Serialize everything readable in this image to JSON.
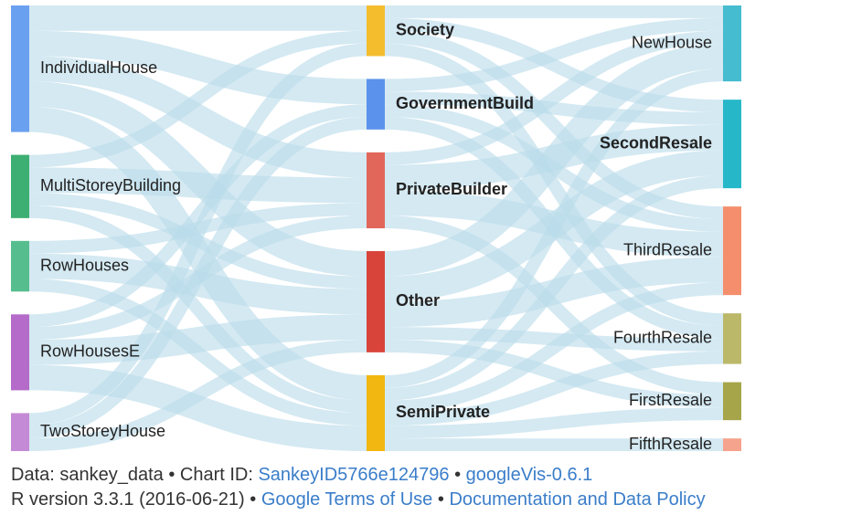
{
  "chart_data": {
    "type": "sankey",
    "link_color": "#b9dbea",
    "columns": [
      [
        {
          "name": "IndividualHouse",
          "color": "#6aa0f0",
          "bold": false
        },
        {
          "name": "MultiStoreyBuilding",
          "color": "#3eaf72",
          "bold": false
        },
        {
          "name": "RowHouses",
          "color": "#56be8e",
          "bold": false
        },
        {
          "name": "RowHousesE",
          "color": "#b46bc9",
          "bold": false
        },
        {
          "name": "TwoStoreyHouse",
          "color": "#c58ad6",
          "bold": false
        }
      ],
      [
        {
          "name": "Society",
          "color": "#f4bd2d",
          "bold": true
        },
        {
          "name": "GovernmentBuild",
          "color": "#5b93ec",
          "bold": true
        },
        {
          "name": "PrivateBuilder",
          "color": "#e2675b",
          "bold": true
        },
        {
          "name": "Other",
          "color": "#d9443a",
          "bold": true
        },
        {
          "name": "SemiPrivate",
          "color": "#f2b711",
          "bold": true
        }
      ],
      [
        {
          "name": "NewHouse",
          "color": "#45bcd0",
          "bold": false
        },
        {
          "name": "SecondResale",
          "color": "#26b8c9",
          "bold": true
        },
        {
          "name": "ThirdResale",
          "color": "#f48e6d",
          "bold": false
        },
        {
          "name": "FourthResale",
          "color": "#bbb86a",
          "bold": false
        },
        {
          "name": "FirstResale",
          "color": "#a6a54a",
          "bold": false
        },
        {
          "name": "FifthResale",
          "color": "#f5a38c",
          "bold": false
        }
      ]
    ],
    "links": [
      {
        "source": "IndividualHouse",
        "target": "Society",
        "value": 2
      },
      {
        "source": "IndividualHouse",
        "target": "GovernmentBuild",
        "value": 2
      },
      {
        "source": "IndividualHouse",
        "target": "PrivateBuilder",
        "value": 2
      },
      {
        "source": "IndividualHouse",
        "target": "Other",
        "value": 2
      },
      {
        "source": "IndividualHouse",
        "target": "SemiPrivate",
        "value": 2
      },
      {
        "source": "MultiStoreyBuilding",
        "target": "Society",
        "value": 1
      },
      {
        "source": "MultiStoreyBuilding",
        "target": "PrivateBuilder",
        "value": 2
      },
      {
        "source": "MultiStoreyBuilding",
        "target": "Other",
        "value": 1
      },
      {
        "source": "MultiStoreyBuilding",
        "target": "SemiPrivate",
        "value": 1
      },
      {
        "source": "RowHouses",
        "target": "PrivateBuilder",
        "value": 1
      },
      {
        "source": "RowHouses",
        "target": "Other",
        "value": 2
      },
      {
        "source": "RowHouses",
        "target": "SemiPrivate",
        "value": 1
      },
      {
        "source": "RowHousesE",
        "target": "GovernmentBuild",
        "value": 1
      },
      {
        "source": "RowHousesE",
        "target": "PrivateBuilder",
        "value": 1
      },
      {
        "source": "RowHousesE",
        "target": "Other",
        "value": 2
      },
      {
        "source": "RowHousesE",
        "target": "SemiPrivate",
        "value": 2
      },
      {
        "source": "TwoStoreyHouse",
        "target": "Society",
        "value": 1
      },
      {
        "source": "TwoStoreyHouse",
        "target": "GovernmentBuild",
        "value": 1
      },
      {
        "source": "TwoStoreyHouse",
        "target": "Other",
        "value": 1
      },
      {
        "source": "Society",
        "target": "NewHouse",
        "value": 1
      },
      {
        "source": "Society",
        "target": "SecondResale",
        "value": 1
      },
      {
        "source": "Society",
        "target": "ThirdResale",
        "value": 1
      },
      {
        "source": "Society",
        "target": "FourthResale",
        "value": 1
      },
      {
        "source": "GovernmentBuild",
        "target": "NewHouse",
        "value": 1
      },
      {
        "source": "GovernmentBuild",
        "target": "SecondResale",
        "value": 1
      },
      {
        "source": "GovernmentBuild",
        "target": "ThirdResale",
        "value": 1
      },
      {
        "source": "GovernmentBuild",
        "target": "FourthResale",
        "value": 1
      },
      {
        "source": "PrivateBuilder",
        "target": "NewHouse",
        "value": 1
      },
      {
        "source": "PrivateBuilder",
        "target": "SecondResale",
        "value": 2
      },
      {
        "source": "PrivateBuilder",
        "target": "ThirdResale",
        "value": 2
      },
      {
        "source": "PrivateBuilder",
        "target": "FirstResale",
        "value": 1
      },
      {
        "source": "Other",
        "target": "NewHouse",
        "value": 2
      },
      {
        "source": "Other",
        "target": "SecondResale",
        "value": 2
      },
      {
        "source": "Other",
        "target": "ThirdResale",
        "value": 2
      },
      {
        "source": "Other",
        "target": "FourthResale",
        "value": 1
      },
      {
        "source": "Other",
        "target": "FirstResale",
        "value": 1
      },
      {
        "source": "SemiPrivate",
        "target": "NewHouse",
        "value": 1
      },
      {
        "source": "SemiPrivate",
        "target": "SecondResale",
        "value": 1
      },
      {
        "source": "SemiPrivate",
        "target": "ThirdResale",
        "value": 1
      },
      {
        "source": "SemiPrivate",
        "target": "FourthResale",
        "value": 1
      },
      {
        "source": "SemiPrivate",
        "target": "FirstResale",
        "value": 1
      },
      {
        "source": "SemiPrivate",
        "target": "FifthResale",
        "value": 1
      }
    ]
  },
  "footer": {
    "line1_prefix": "Data: sankey_data • Chart ID: ",
    "chart_id_link": "SankeyID5766e124796",
    "line1_sep": " • ",
    "googlevis_link": "googleVis-0.6.1",
    "line2_prefix": "R version 3.3.1 (2016-06-21) • ",
    "terms_link": "Google Terms of Use",
    "line2_sep": " • ",
    "policy_link": "Documentation and Data Policy"
  }
}
